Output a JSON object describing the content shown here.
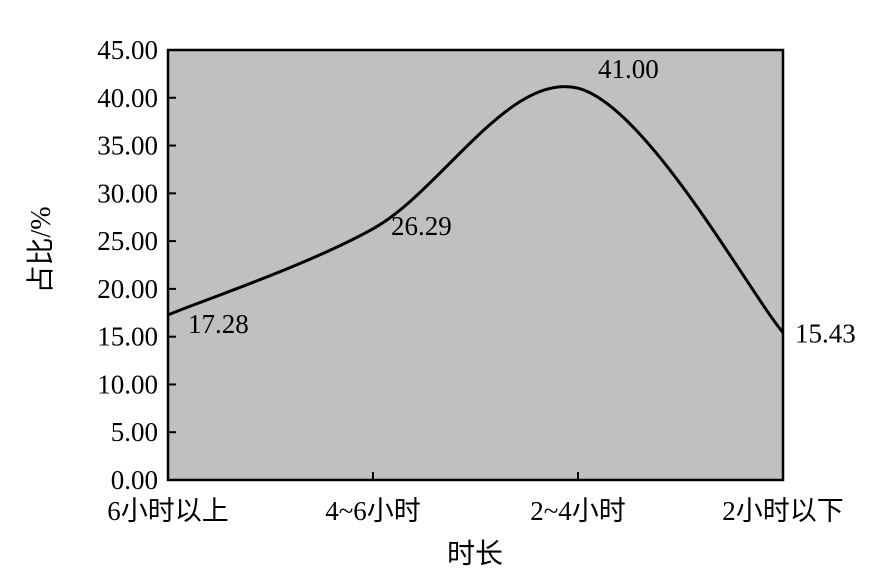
{
  "chart_data": {
    "type": "line",
    "title": "",
    "xlabel": "时长",
    "ylabel": "占比/%",
    "categories": [
      "6小时以上",
      "4~6小时",
      "2~4小时",
      "2小时以下"
    ],
    "values": [
      17.28,
      26.29,
      41.0,
      15.43
    ],
    "data_labels": [
      "17.28",
      "26.29",
      "41.00",
      "15.43"
    ],
    "ylim": [
      0,
      45
    ],
    "yticks": [
      "0.00",
      "5.00",
      "10.00",
      "15.00",
      "20.00",
      "25.00",
      "30.00",
      "35.00",
      "40.00",
      "45.00"
    ],
    "grid": false,
    "smooth": true,
    "colors": {
      "plot_background": "#c0c0c0",
      "line": "#000000"
    }
  }
}
